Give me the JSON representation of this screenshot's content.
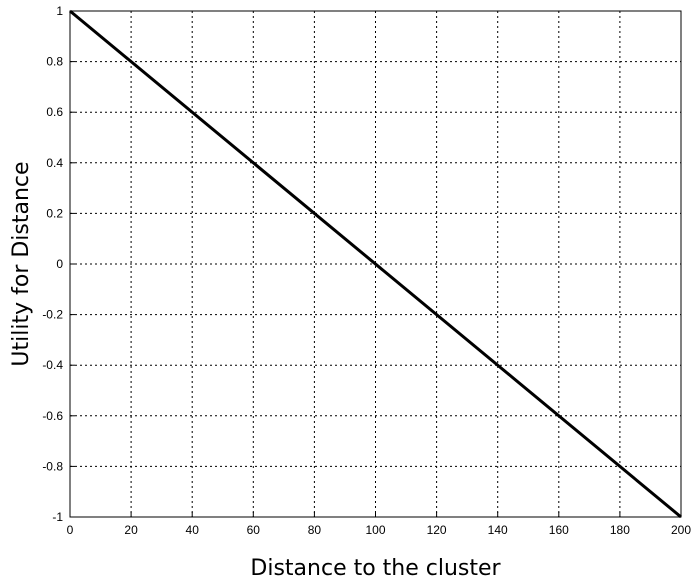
{
  "chart_data": {
    "type": "line",
    "title": "",
    "xlabel": "Distance to the cluster",
    "ylabel": "Utility for Distance",
    "xlim": [
      0,
      200
    ],
    "ylim": [
      -1,
      1
    ],
    "xticks": [
      0,
      20,
      40,
      60,
      80,
      100,
      120,
      140,
      160,
      180,
      200
    ],
    "yticks": [
      1,
      0.8,
      0.6,
      0.4,
      0.2,
      0,
      -0.2,
      -0.4,
      -0.6,
      -0.8,
      -1
    ],
    "ytick_labels": [
      "1",
      "0.8",
      "0.6",
      "0.4",
      "0.2",
      "0",
      "-0.2",
      "-0.4",
      "-0.6",
      "-0.8",
      "-1"
    ],
    "grid": true,
    "series": [
      {
        "x": [
          0,
          200
        ],
        "y": [
          1,
          -1
        ],
        "color": "#000000"
      }
    ]
  }
}
